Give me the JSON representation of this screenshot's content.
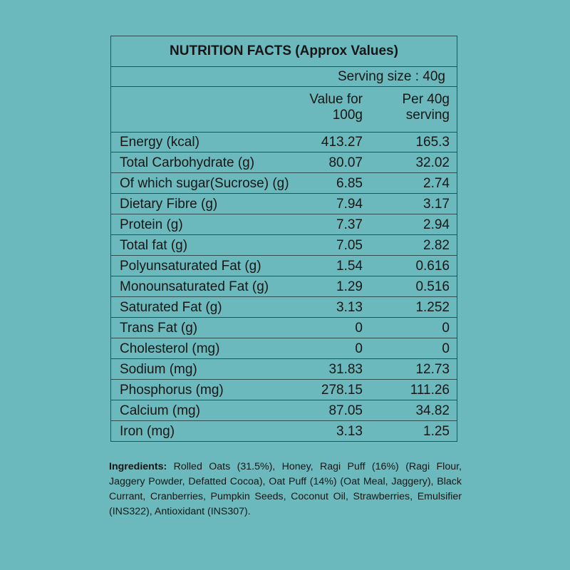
{
  "title": "NUTRITION FACTS (Approx Values)",
  "serving_size": "Serving size : 40g",
  "columns": {
    "per_100g": "Value for\n100g",
    "per_serving": "Per 40g\nserving"
  },
  "rows": [
    {
      "name": "Energy (kcal)",
      "per_100g": "413.27",
      "per_serving": "165.3"
    },
    {
      "name": "Total Carbohydrate (g)",
      "per_100g": "80.07",
      "per_serving": "32.02"
    },
    {
      "name": "Of which sugar(Sucrose) (g)",
      "per_100g": "6.85",
      "per_serving": "2.74"
    },
    {
      "name": "Dietary Fibre (g)",
      "per_100g": "7.94",
      "per_serving": "3.17"
    },
    {
      "name": "Protein (g)",
      "per_100g": "7.37",
      "per_serving": "2.94"
    },
    {
      "name": "Total fat (g)",
      "per_100g": "7.05",
      "per_serving": "2.82"
    },
    {
      "name": "Polyunsaturated Fat (g)",
      "per_100g": "1.54",
      "per_serving": "0.616"
    },
    {
      "name": "Monounsaturated Fat (g)",
      "per_100g": "1.29",
      "per_serving": "0.516"
    },
    {
      "name": "Saturated Fat (g)",
      "per_100g": "3.13",
      "per_serving": "1.252"
    },
    {
      "name": "Trans Fat (g)",
      "per_100g": "0",
      "per_serving": "0"
    },
    {
      "name": "Cholesterol (mg)",
      "per_100g": "0",
      "per_serving": "0"
    },
    {
      "name": "Sodium (mg)",
      "per_100g": "31.83",
      "per_serving": "12.73"
    },
    {
      "name": "Phosphorus (mg)",
      "per_100g": "278.15",
      "per_serving": "111.26"
    },
    {
      "name": "Calcium (mg)",
      "per_100g": "87.05",
      "per_serving": "34.82"
    },
    {
      "name": "Iron (mg)",
      "per_100g": "3.13",
      "per_serving": "1.25"
    }
  ],
  "ingredients": {
    "label": "Ingredients:",
    "text": " Rolled Oats (31.5%), Honey, Ragi Puff (16%) (Ragi Flour, Jaggery Powder, Defatted Cocoa), Oat Puff (14%) (Oat Meal, Jaggery), Black Currant, Cranberries, Pumpkin Seeds, Coconut Oil, Strawberries, Emulsifier (INS322), Antioxidant (INS307)."
  },
  "colors": {
    "background": "#6cb9bd",
    "border": "#2d4f52",
    "text": "#161616"
  }
}
